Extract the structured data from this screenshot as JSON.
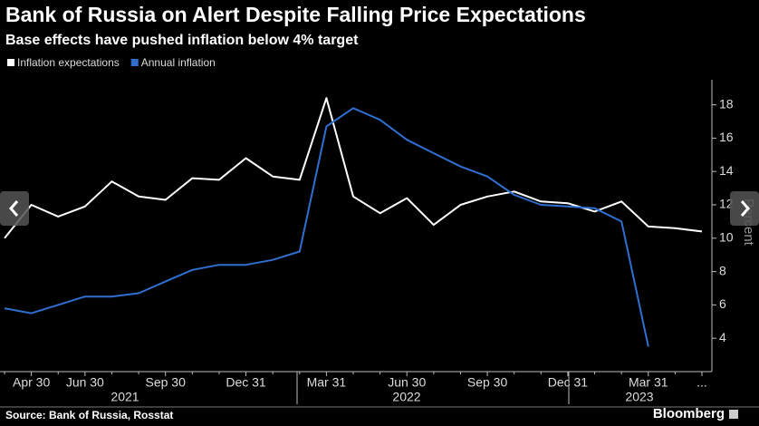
{
  "chart_data": {
    "type": "line",
    "title": "Bank of Russia on Alert Despite Falling Price Expectations",
    "subtitle": "Base effects have pushed inflation below 4% target",
    "y_label": "Percent",
    "source": "Source: Bank of Russia, Rosstat",
    "brand": "Bloomberg",
    "categories": [
      null,
      "Apr 30",
      null,
      "Jun 30",
      null,
      null,
      "Sep 30",
      null,
      null,
      "Dec 31",
      null,
      null,
      "Mar 31",
      null,
      null,
      "Jun 30",
      null,
      null,
      "Sep 30",
      null,
      null,
      "Dec 31",
      null,
      null,
      "Mar 31",
      null,
      "..."
    ],
    "year_labels": [
      "2021",
      "2022",
      "2023"
    ],
    "series": [
      {
        "name": "Inflation expectations",
        "color": "#ffffff",
        "values": [
          10.0,
          12.0,
          11.3,
          11.9,
          13.4,
          12.5,
          12.3,
          13.6,
          13.5,
          14.8,
          13.7,
          13.5,
          18.4,
          12.5,
          11.5,
          12.4,
          10.8,
          12.0,
          12.5,
          12.8,
          12.2,
          12.1,
          11.6,
          12.2,
          10.7,
          10.6,
          10.4
        ]
      },
      {
        "name": "Annual inflation",
        "color": "#2f6fd0",
        "values": [
          5.8,
          5.5,
          6.0,
          6.5,
          6.5,
          6.7,
          7.4,
          8.1,
          8.4,
          8.4,
          8.7,
          9.2,
          16.7,
          17.8,
          17.1,
          15.9,
          15.1,
          14.3,
          13.7,
          12.6,
          12.0,
          11.9,
          11.8,
          11.0,
          3.5,
          null,
          null
        ]
      }
    ],
    "ylim": [
      2,
      19.5
    ],
    "yticks": [
      4,
      6,
      8,
      10,
      12,
      14,
      16,
      18
    ],
    "grid": false
  }
}
